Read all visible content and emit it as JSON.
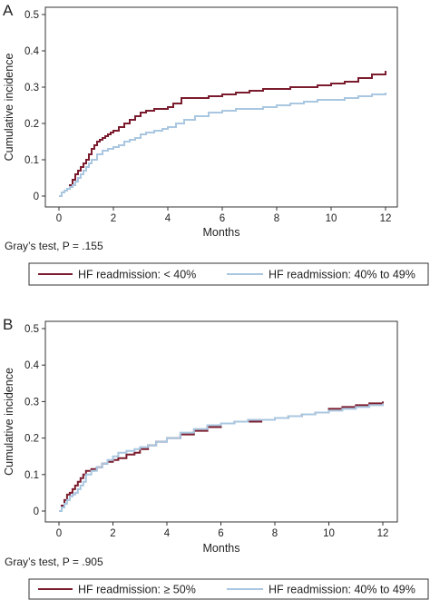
{
  "chart_data": [
    {
      "type": "line",
      "panel": "A",
      "xlabel": "Months",
      "ylabel": "Cumulative incidence",
      "xlim": [
        0,
        12
      ],
      "ylim": [
        0,
        0.5
      ],
      "x_ticks": [
        "0",
        "2",
        "4",
        "6",
        "8",
        "10",
        "12"
      ],
      "y_ticks": [
        "0",
        "0.1",
        "0.2",
        "0.3",
        "0.4",
        "0.5"
      ],
      "test_text": "Gray’s test, P = .155",
      "legend_position": "bottom",
      "series": [
        {
          "name": "HF readmission: < 40%",
          "color": "#7b1c2e",
          "x": [
            0,
            0.1,
            0.2,
            0.3,
            0.4,
            0.5,
            0.6,
            0.7,
            0.8,
            0.9,
            1.0,
            1.1,
            1.2,
            1.3,
            1.4,
            1.5,
            1.6,
            1.7,
            1.8,
            1.9,
            2.0,
            2.2,
            2.4,
            2.6,
            2.8,
            3.0,
            3.2,
            3.5,
            3.8,
            4.0,
            4.2,
            4.5,
            5.0,
            5.5,
            6.0,
            6.5,
            7.0,
            7.5,
            8.0,
            8.5,
            9.0,
            9.5,
            10.0,
            10.5,
            11.0,
            11.5,
            12.0
          ],
          "y": [
            0.0,
            0.01,
            0.015,
            0.02,
            0.03,
            0.045,
            0.06,
            0.07,
            0.08,
            0.09,
            0.1,
            0.115,
            0.13,
            0.14,
            0.15,
            0.155,
            0.16,
            0.165,
            0.17,
            0.175,
            0.18,
            0.19,
            0.2,
            0.21,
            0.22,
            0.23,
            0.235,
            0.24,
            0.24,
            0.245,
            0.255,
            0.27,
            0.27,
            0.275,
            0.28,
            0.285,
            0.29,
            0.295,
            0.295,
            0.3,
            0.3,
            0.305,
            0.31,
            0.315,
            0.325,
            0.335,
            0.345
          ]
        },
        {
          "name": "HF readmission: 40% to 49%",
          "color": "#a9c7e0",
          "x": [
            0,
            0.1,
            0.2,
            0.3,
            0.4,
            0.5,
            0.6,
            0.7,
            0.8,
            0.9,
            1.0,
            1.1,
            1.2,
            1.4,
            1.6,
            1.8,
            2.0,
            2.2,
            2.4,
            2.6,
            2.8,
            3.0,
            3.2,
            3.5,
            3.8,
            4.0,
            4.3,
            4.6,
            5.0,
            5.5,
            6.0,
            6.5,
            7.0,
            7.5,
            8.0,
            8.5,
            9.0,
            9.5,
            10.0,
            10.5,
            11.0,
            11.5,
            12.0
          ],
          "y": [
            0.0,
            0.01,
            0.015,
            0.02,
            0.025,
            0.03,
            0.04,
            0.05,
            0.06,
            0.07,
            0.08,
            0.09,
            0.1,
            0.115,
            0.125,
            0.13,
            0.135,
            0.14,
            0.15,
            0.155,
            0.16,
            0.17,
            0.175,
            0.18,
            0.185,
            0.19,
            0.2,
            0.21,
            0.22,
            0.23,
            0.235,
            0.24,
            0.24,
            0.245,
            0.25,
            0.255,
            0.26,
            0.265,
            0.265,
            0.27,
            0.275,
            0.28,
            0.285
          ]
        }
      ]
    },
    {
      "type": "line",
      "panel": "B",
      "xlabel": "Months",
      "ylabel": "Cumulative incidence",
      "xlim": [
        0,
        12
      ],
      "ylim": [
        0,
        0.5
      ],
      "x_ticks": [
        "0",
        "2",
        "4",
        "6",
        "8",
        "10",
        "12"
      ],
      "y_ticks": [
        "0",
        "0.1",
        "0.2",
        "0.3",
        "0.4",
        "0.5"
      ],
      "test_text": "Gray’s test, P = .905",
      "legend_position": "bottom",
      "series": [
        {
          "name": "HF readmission: ≥ 50%",
          "color": "#7b1c2e",
          "x": [
            0,
            0.1,
            0.2,
            0.3,
            0.4,
            0.5,
            0.6,
            0.7,
            0.8,
            0.9,
            1.0,
            1.2,
            1.4,
            1.6,
            1.8,
            2.0,
            2.2,
            2.5,
            2.8,
            3.0,
            3.3,
            3.6,
            4.0,
            4.5,
            5.0,
            5.5,
            6.0,
            6.5,
            7.0,
            7.5,
            8.0,
            8.5,
            9.0,
            9.5,
            10.0,
            10.5,
            11.0,
            11.5,
            12.0
          ],
          "y": [
            0.0,
            0.015,
            0.03,
            0.045,
            0.05,
            0.06,
            0.07,
            0.08,
            0.09,
            0.1,
            0.11,
            0.115,
            0.12,
            0.13,
            0.135,
            0.14,
            0.145,
            0.155,
            0.16,
            0.17,
            0.18,
            0.19,
            0.2,
            0.21,
            0.22,
            0.23,
            0.24,
            0.245,
            0.245,
            0.25,
            0.255,
            0.26,
            0.265,
            0.27,
            0.28,
            0.285,
            0.29,
            0.295,
            0.3
          ]
        },
        {
          "name": "HF readmission: 40% to 49%",
          "color": "#a9c7e0",
          "x": [
            0,
            0.1,
            0.2,
            0.3,
            0.4,
            0.5,
            0.6,
            0.7,
            0.8,
            0.9,
            1.0,
            1.2,
            1.4,
            1.6,
            1.8,
            2.0,
            2.2,
            2.5,
            2.8,
            3.0,
            3.3,
            3.6,
            4.0,
            4.5,
            5.0,
            5.5,
            6.0,
            6.5,
            7.0,
            7.5,
            8.0,
            8.5,
            9.0,
            9.5,
            10.0,
            10.5,
            11.0,
            11.5,
            12.0
          ],
          "y": [
            0.0,
            0.01,
            0.02,
            0.03,
            0.04,
            0.045,
            0.05,
            0.06,
            0.07,
            0.08,
            0.1,
            0.11,
            0.12,
            0.13,
            0.14,
            0.15,
            0.16,
            0.165,
            0.17,
            0.175,
            0.18,
            0.19,
            0.2,
            0.215,
            0.225,
            0.235,
            0.24,
            0.245,
            0.25,
            0.25,
            0.255,
            0.26,
            0.265,
            0.27,
            0.275,
            0.28,
            0.285,
            0.29,
            0.295
          ]
        }
      ]
    }
  ]
}
